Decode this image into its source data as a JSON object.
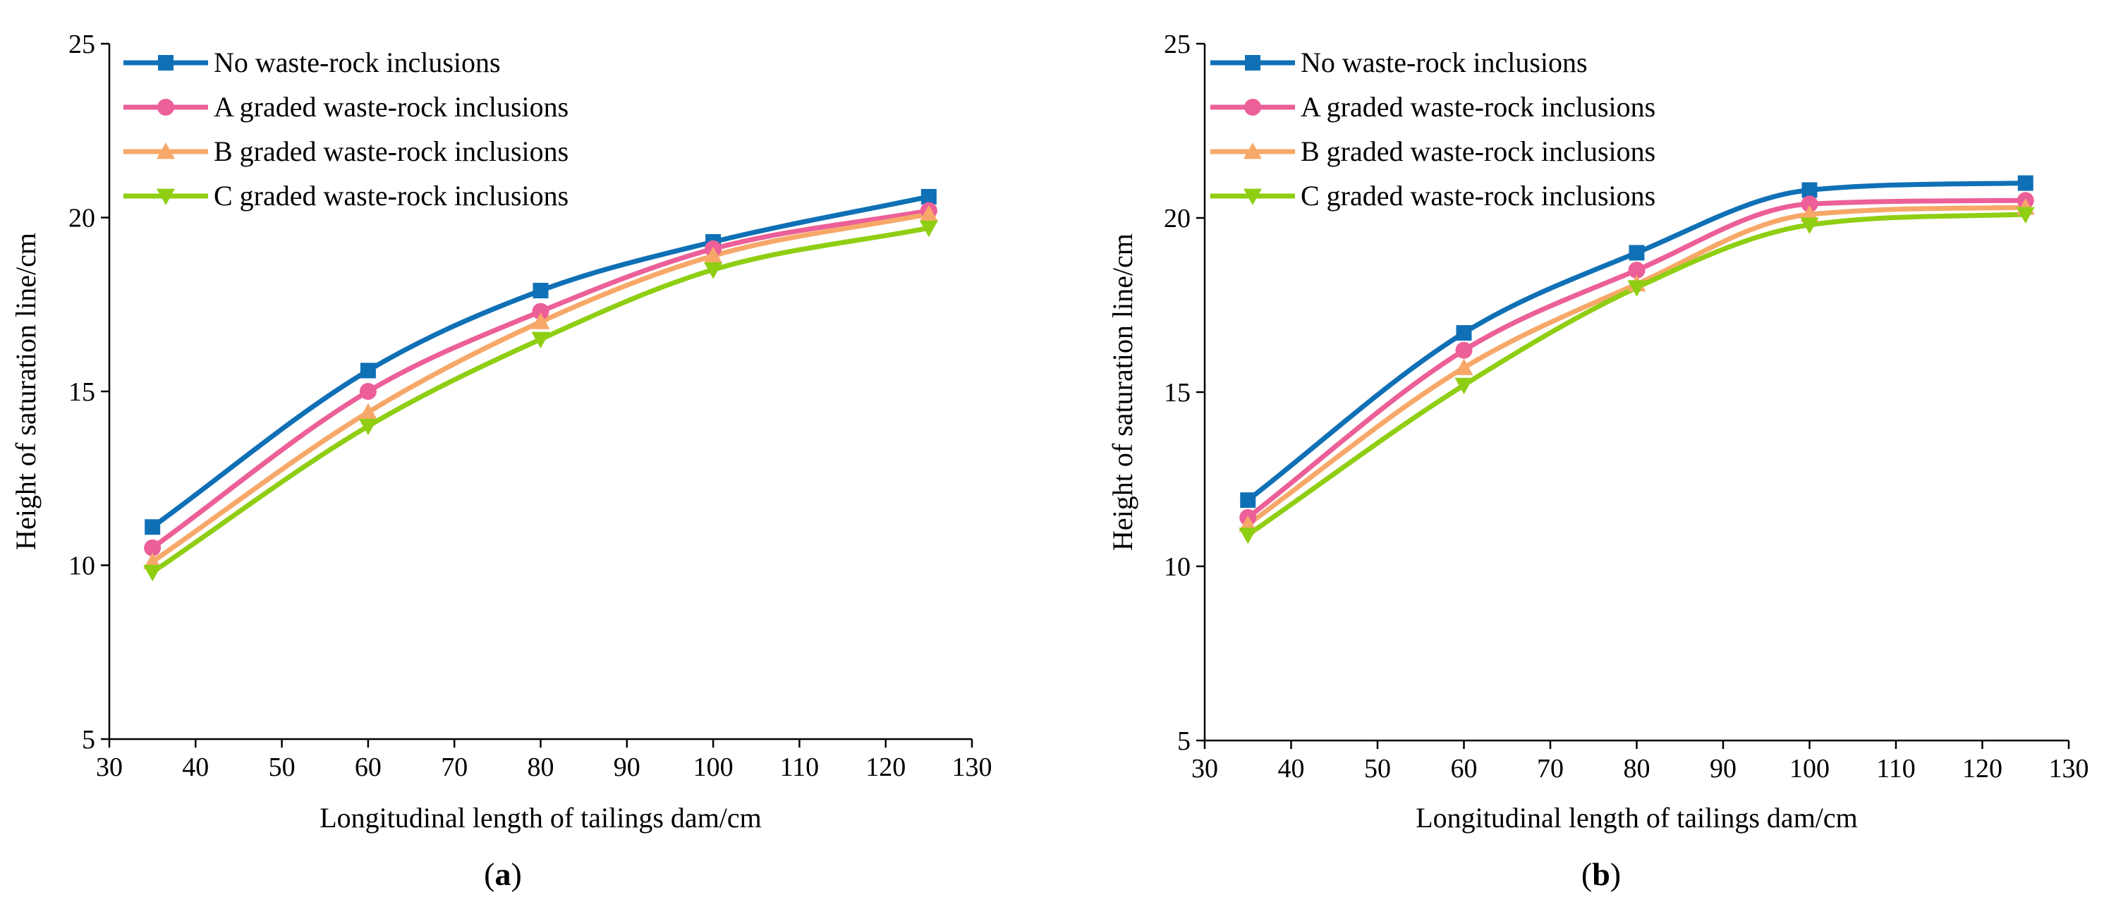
{
  "figure": {
    "series_styles": [
      {
        "color": "#0f70b6",
        "marker": "square"
      },
      {
        "color": "#ec5f98",
        "marker": "circle"
      },
      {
        "color": "#f7a868",
        "marker": "triangle-up"
      },
      {
        "color": "#8fce12",
        "marker": "triangle-down"
      }
    ]
  },
  "chart_data": [
    {
      "type": "line",
      "panel_label": "a",
      "xlabel": "Longitudinal length of tailings dam/cm",
      "ylabel": "Height of saturation line/cm",
      "xlim": [
        30,
        130
      ],
      "ylim": [
        5,
        25
      ],
      "xticks": [
        30,
        40,
        50,
        60,
        70,
        80,
        90,
        100,
        110,
        120,
        130
      ],
      "yticks": [
        5,
        10,
        15,
        20,
        25
      ],
      "legend_position": "top-left",
      "x": [
        35,
        60,
        80,
        100,
        125
      ],
      "series": [
        {
          "name": "No waste-rock inclusions",
          "values": [
            11.1,
            15.6,
            17.9,
            19.3,
            20.6
          ]
        },
        {
          "name": "A graded waste-rock inclusions",
          "values": [
            10.5,
            15.0,
            17.3,
            19.1,
            20.2
          ]
        },
        {
          "name": "B graded waste-rock inclusions",
          "values": [
            10.1,
            14.4,
            17.0,
            18.9,
            20.1
          ]
        },
        {
          "name": "C  graded waste-rock inclusions",
          "values": [
            9.8,
            14.0,
            16.5,
            18.5,
            19.7
          ]
        }
      ]
    },
    {
      "type": "line",
      "panel_label": "b",
      "xlabel": "Longitudinal length of tailings dam/cm",
      "ylabel": "Height of saturation line/cm",
      "xlim": [
        30,
        130
      ],
      "ylim": [
        5,
        25
      ],
      "xticks": [
        30,
        40,
        50,
        60,
        70,
        80,
        90,
        100,
        110,
        120,
        130
      ],
      "yticks": [
        5,
        10,
        15,
        20,
        25
      ],
      "legend_position": "top-left",
      "x": [
        35,
        60,
        80,
        100,
        125
      ],
      "series": [
        {
          "name": "No waste-rock inclusions",
          "values": [
            11.9,
            16.7,
            19.0,
            20.8,
            21.0
          ]
        },
        {
          "name": "A graded waste-rock inclusions",
          "values": [
            11.4,
            16.2,
            18.5,
            20.4,
            20.5
          ]
        },
        {
          "name": "B graded waste-rock inclusions",
          "values": [
            11.2,
            15.7,
            18.1,
            20.1,
            20.3
          ]
        },
        {
          "name": "C  graded waste-rock inclusions",
          "values": [
            10.9,
            15.2,
            18.0,
            19.8,
            20.1
          ]
        }
      ]
    }
  ]
}
